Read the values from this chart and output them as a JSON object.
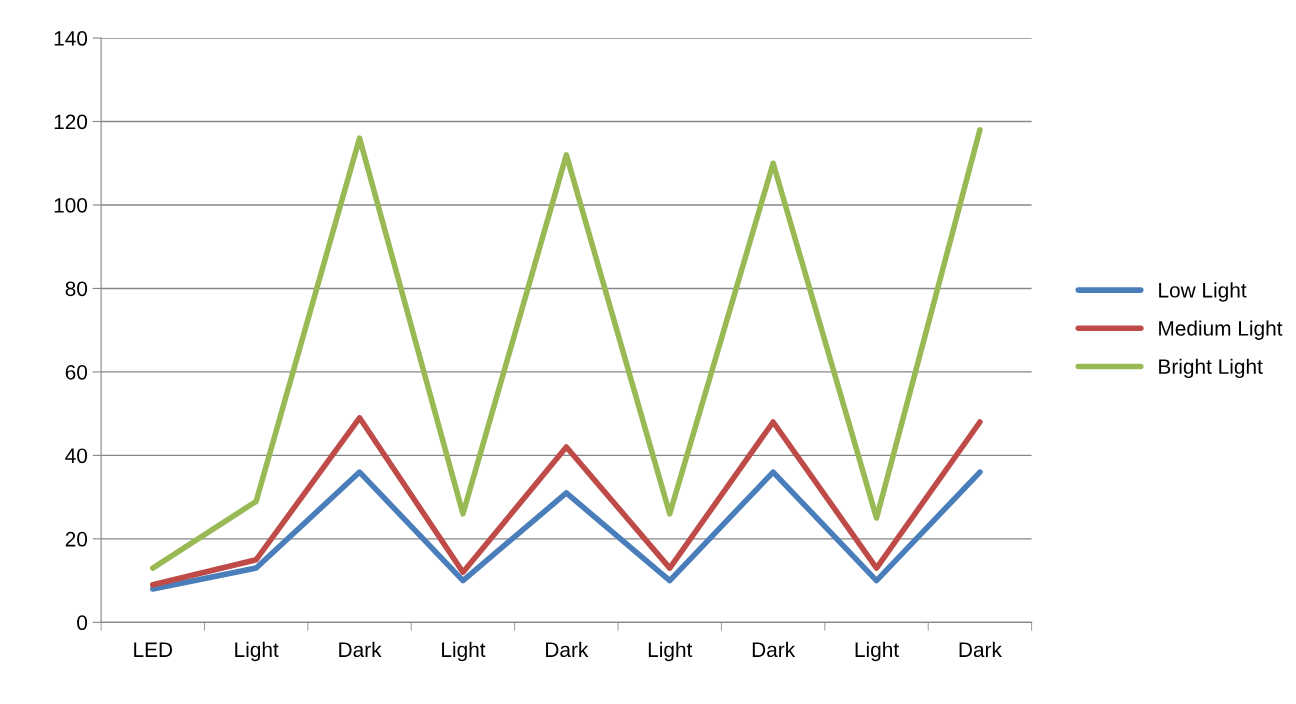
{
  "chart_data": {
    "type": "line",
    "categories": [
      "LED",
      "Light",
      "Dark",
      "Light",
      "Dark",
      "Light",
      "Dark",
      "Light",
      "Dark"
    ],
    "series": [
      {
        "name": "Low Light",
        "color": "#4a7ebb",
        "values": [
          8,
          13,
          36,
          10,
          31,
          10,
          36,
          10,
          36
        ]
      },
      {
        "name": "Medium Light",
        "color": "#be4b48",
        "values": [
          9,
          15,
          49,
          12,
          42,
          13,
          48,
          13,
          48
        ]
      },
      {
        "name": "Bright Light",
        "color": "#98b954",
        "values": [
          13,
          29,
          116,
          26,
          112,
          26,
          110,
          25,
          118
        ]
      }
    ],
    "ylim": [
      0,
      140
    ],
    "yticks": [
      0,
      20,
      40,
      60,
      80,
      100,
      120,
      140
    ],
    "grid": "y",
    "legend": "right",
    "marker": "none",
    "line_style": "solid"
  }
}
